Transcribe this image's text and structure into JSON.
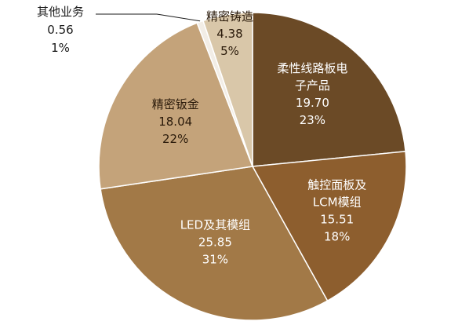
{
  "chart_data": {
    "type": "pie",
    "title": "",
    "slices": [
      {
        "label": "柔性线路板电子产品",
        "label_lines": [
          "柔性线路板电",
          "子产品"
        ],
        "value": 19.7,
        "percent": "23%",
        "value_text": "19.70",
        "color": "#6b4a26",
        "text_tone": "dark-bg"
      },
      {
        "label": "触控面板及LCM模组",
        "label_lines": [
          "触控面板及",
          "LCM模组"
        ],
        "value": 15.51,
        "percent": "18%",
        "value_text": "15.51",
        "color": "#8d5e2e",
        "text_tone": "dark-bg"
      },
      {
        "label": "LED及其模组",
        "label_lines": [
          "LED及其模组"
        ],
        "value": 25.85,
        "percent": "31%",
        "value_text": "25.85",
        "color": "#a27947",
        "text_tone": "dark-bg"
      },
      {
        "label": "精密钣金",
        "label_lines": [
          "精密钣金"
        ],
        "value": 18.04,
        "percent": "22%",
        "value_text": "18.04",
        "color": "#c4a37a",
        "text_tone": "light-bg"
      },
      {
        "label": "其他业务",
        "label_lines": [
          "其他业务"
        ],
        "value": 0.56,
        "percent": "1%",
        "value_text": "0.56",
        "color": "#f2ede6",
        "text_tone": "outside"
      },
      {
        "label": "精密铸造",
        "label_lines": [
          "精密铸造"
        ],
        "value": 4.38,
        "percent": "5%",
        "value_text": "4.38",
        "color": "#d9c7a9",
        "text_tone": "light-bg"
      }
    ],
    "legend": "none"
  }
}
